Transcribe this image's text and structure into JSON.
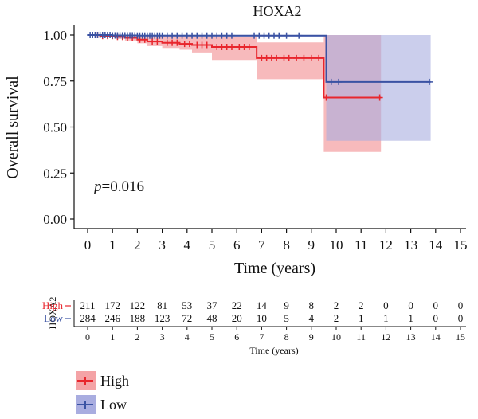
{
  "chart_data": {
    "type": "line",
    "subtype": "kaplan-meier",
    "title": "HOXA2",
    "xlabel": "Time (years)",
    "ylabel": "Overall survival",
    "xlim": [
      0,
      15
    ],
    "ylim": [
      0,
      1
    ],
    "xticks": [
      "0",
      "1",
      "2",
      "3",
      "4",
      "5",
      "6",
      "7",
      "8",
      "9",
      "10",
      "11",
      "12",
      "13",
      "14",
      "15"
    ],
    "yticks": [
      "0.00",
      "0.25",
      "0.50",
      "0.75",
      "1.00"
    ],
    "grid": false,
    "annotation": {
      "prefix": "p",
      "text": "=0.016"
    },
    "series": [
      {
        "name": "High",
        "color": "#e8262d",
        "fill": "#f4a3a6",
        "steps": [
          [
            0,
            1.0
          ],
          [
            0.5,
            0.995
          ],
          [
            1.1,
            0.99
          ],
          [
            1.5,
            0.985
          ],
          [
            2.0,
            0.975
          ],
          [
            2.4,
            0.965
          ],
          [
            3.0,
            0.958
          ],
          [
            3.7,
            0.952
          ],
          [
            4.2,
            0.946
          ],
          [
            5.0,
            0.935
          ],
          [
            6.8,
            0.875
          ],
          [
            9.5,
            0.66
          ],
          [
            11.8,
            0.66
          ]
        ],
        "ci": [
          [
            0,
            1.0,
            1.0
          ],
          [
            0.5,
            1.0,
            0.99
          ],
          [
            1.1,
            1.0,
            0.98
          ],
          [
            1.5,
            1.0,
            0.97
          ],
          [
            2.0,
            1.0,
            0.955
          ],
          [
            2.4,
            1.0,
            0.94
          ],
          [
            3.0,
            1.0,
            0.93
          ],
          [
            3.7,
            1.0,
            0.92
          ],
          [
            4.2,
            0.99,
            0.905
          ],
          [
            5.0,
            0.99,
            0.865
          ],
          [
            6.8,
            0.96,
            0.76
          ],
          [
            9.5,
            1.0,
            0.365
          ],
          [
            11.8,
            1.0,
            0.365
          ]
        ],
        "censor": [
          0.2,
          0.4,
          0.6,
          0.8,
          1.0,
          1.2,
          1.4,
          1.6,
          1.8,
          2.1,
          2.3,
          2.6,
          2.8,
          3.2,
          3.4,
          3.6,
          3.9,
          4.1,
          4.4,
          4.6,
          4.8,
          5.2,
          5.4,
          5.6,
          5.8,
          6.1,
          6.3,
          6.5,
          7.0,
          7.2,
          7.4,
          7.6,
          7.9,
          8.1,
          8.4,
          8.7,
          9.0,
          9.3,
          9.6,
          11.75
        ]
      },
      {
        "name": "Low",
        "color": "#3a52a3",
        "fill": "#a9ade0",
        "steps": [
          [
            0,
            1.0
          ],
          [
            1.0,
            0.998
          ],
          [
            2.0,
            0.997
          ],
          [
            9.6,
            0.745
          ],
          [
            13.8,
            0.745
          ]
        ],
        "ci": [
          [
            0,
            1.0,
            1.0
          ],
          [
            1.0,
            1.0,
            0.994
          ],
          [
            2.0,
            1.0,
            0.99
          ],
          [
            9.6,
            1.0,
            0.425
          ],
          [
            13.8,
            1.0,
            0.425
          ]
        ],
        "censor": [
          0.1,
          0.2,
          0.3,
          0.4,
          0.5,
          0.6,
          0.7,
          0.8,
          0.9,
          1.0,
          1.1,
          1.2,
          1.3,
          1.4,
          1.5,
          1.6,
          1.7,
          1.8,
          1.9,
          2.0,
          2.1,
          2.2,
          2.3,
          2.4,
          2.5,
          2.6,
          2.7,
          2.8,
          2.9,
          3.0,
          3.2,
          3.4,
          3.6,
          3.8,
          4.0,
          4.2,
          4.4,
          4.6,
          4.8,
          5.0,
          5.2,
          5.4,
          5.6,
          5.8,
          6.7,
          6.9,
          7.1,
          7.3,
          7.5,
          7.7,
          8.0,
          8.5,
          9.8,
          10.1,
          13.75
        ]
      }
    ],
    "risk_table": {
      "group_label": "HOXA2",
      "xlabel": "Time (years)",
      "times": [
        "0",
        "1",
        "2",
        "3",
        "4",
        "5",
        "6",
        "7",
        "8",
        "9",
        "10",
        "11",
        "12",
        "13",
        "14",
        "15"
      ],
      "rows": [
        {
          "name": "High",
          "color": "#e8262d",
          "values": [
            "211",
            "172",
            "122",
            "81",
            "53",
            "37",
            "22",
            "14",
            "9",
            "8",
            "2",
            "2",
            "0",
            "0",
            "0",
            "0"
          ]
        },
        {
          "name": "Low",
          "color": "#3a52a3",
          "values": [
            "284",
            "246",
            "188",
            "123",
            "72",
            "48",
            "20",
            "10",
            "5",
            "4",
            "2",
            "1",
            "1",
            "1",
            "0",
            "0"
          ]
        }
      ]
    },
    "legend": {
      "position": "bottom-left",
      "items": [
        {
          "name": "High",
          "color": "#e8262d",
          "fill": "#f4a3a6"
        },
        {
          "name": "Low",
          "color": "#3a52a3",
          "fill": "#a9ade0"
        }
      ]
    }
  }
}
